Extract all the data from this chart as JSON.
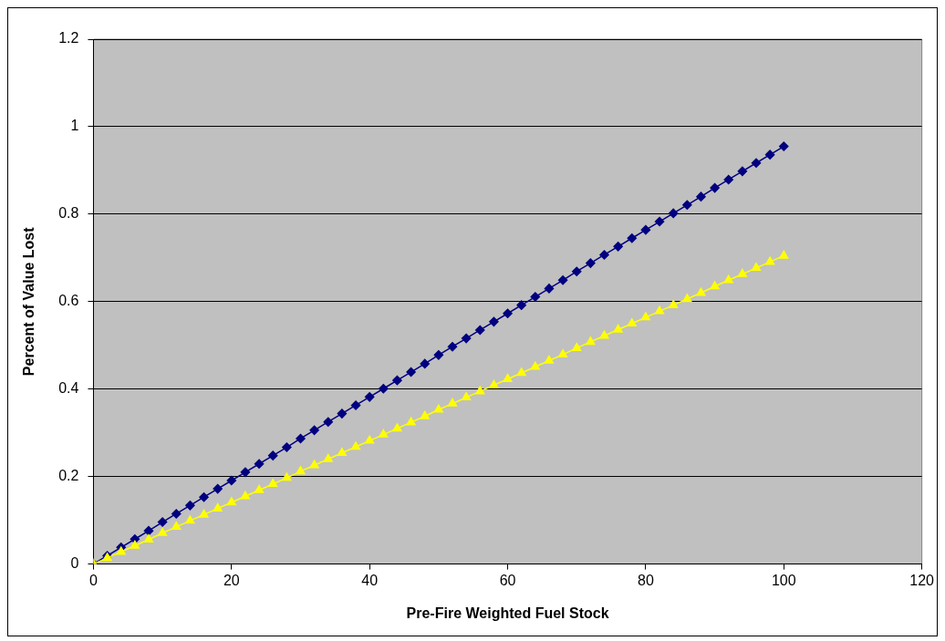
{
  "chart_data": {
    "type": "line",
    "xlabel": "Pre-Fire Weighted Fuel Stock",
    "ylabel": "Percent of Value Lost",
    "x": [
      0,
      2,
      4,
      6,
      8,
      10,
      12,
      14,
      16,
      18,
      20,
      22,
      24,
      26,
      28,
      30,
      32,
      34,
      36,
      38,
      40,
      42,
      44,
      46,
      48,
      50,
      52,
      54,
      56,
      58,
      60,
      62,
      64,
      66,
      68,
      70,
      72,
      74,
      76,
      78,
      80,
      82,
      84,
      86,
      88,
      90,
      92,
      94,
      96,
      98,
      100
    ],
    "series": [
      {
        "color": "#000080",
        "marker": "diamond",
        "values": [
          0,
          0.019,
          0.038,
          0.057,
          0.076,
          0.096,
          0.115,
          0.134,
          0.153,
          0.172,
          0.191,
          0.21,
          0.229,
          0.248,
          0.267,
          0.287,
          0.306,
          0.325,
          0.344,
          0.363,
          0.382,
          0.401,
          0.42,
          0.439,
          0.458,
          0.478,
          0.497,
          0.516,
          0.535,
          0.554,
          0.573,
          0.592,
          0.611,
          0.63,
          0.649,
          0.669,
          0.688,
          0.707,
          0.726,
          0.745,
          0.764,
          0.783,
          0.802,
          0.821,
          0.84,
          0.86,
          0.879,
          0.898,
          0.917,
          0.936,
          0.955
        ]
      },
      {
        "color": "#ffff00",
        "marker": "triangle",
        "values": [
          0,
          0.014,
          0.028,
          0.042,
          0.056,
          0.071,
          0.085,
          0.099,
          0.113,
          0.127,
          0.141,
          0.155,
          0.169,
          0.183,
          0.197,
          0.212,
          0.226,
          0.24,
          0.254,
          0.268,
          0.282,
          0.296,
          0.31,
          0.324,
          0.338,
          0.353,
          0.367,
          0.381,
          0.395,
          0.409,
          0.423,
          0.437,
          0.451,
          0.465,
          0.479,
          0.494,
          0.508,
          0.522,
          0.536,
          0.55,
          0.564,
          0.578,
          0.592,
          0.606,
          0.62,
          0.635,
          0.649,
          0.663,
          0.677,
          0.691,
          0.705
        ]
      }
    ],
    "xlim": [
      0,
      120
    ],
    "xticks": [
      0,
      20,
      40,
      60,
      80,
      100,
      120
    ],
    "ylim": [
      0,
      1.2
    ],
    "yticks": [
      0,
      0.2,
      0.4,
      0.6,
      0.8,
      1,
      1.2
    ],
    "grid": "y",
    "legend": false
  }
}
